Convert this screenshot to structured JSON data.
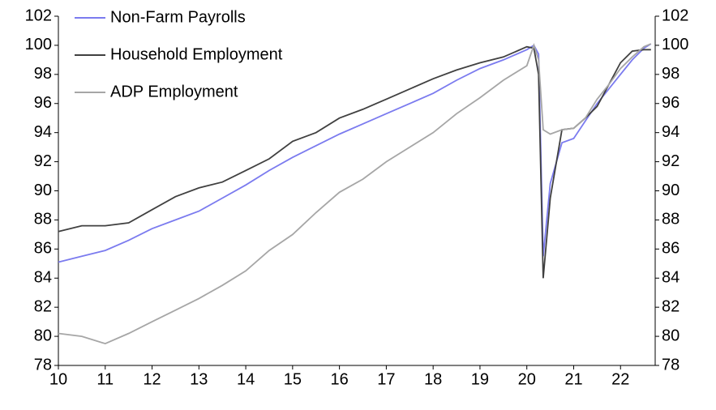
{
  "chart_data": {
    "type": "line",
    "x": [
      10,
      10.5,
      11,
      11.5,
      12,
      12.5,
      13,
      13.5,
      14,
      14.5,
      15,
      15.5,
      16,
      16.5,
      17,
      17.5,
      18,
      18.5,
      19,
      19.5,
      20,
      20.15,
      20.25,
      20.35,
      20.5,
      20.75,
      21,
      21.25,
      21.5,
      21.75,
      22,
      22.25,
      22.5,
      22.65
    ],
    "series": [
      {
        "name": "Non-Farm Payrolls",
        "color": "#7b7bef",
        "values": [
          85.1,
          85.5,
          85.9,
          86.6,
          87.4,
          88.0,
          88.6,
          89.5,
          90.4,
          91.4,
          92.3,
          93.1,
          93.9,
          94.6,
          95.3,
          96.0,
          96.7,
          97.6,
          98.4,
          99.0,
          99.7,
          100.0,
          99.4,
          85.5,
          90.5,
          93.3,
          93.6,
          94.8,
          96.0,
          97.0,
          98.0,
          99.0,
          99.8,
          100.1
        ]
      },
      {
        "name": "Household Employment",
        "color": "#404040",
        "values": [
          87.2,
          87.6,
          87.6,
          87.8,
          88.7,
          89.6,
          90.2,
          90.6,
          91.4,
          92.2,
          93.4,
          94.0,
          95.0,
          95.6,
          96.3,
          97.0,
          97.7,
          98.3,
          98.8,
          99.2,
          99.9,
          99.8,
          98.0,
          84.0,
          89.5,
          94.2,
          94.3,
          95.0,
          95.8,
          97.3,
          98.8,
          99.6,
          99.7,
          99.7
        ]
      },
      {
        "name": "ADP Employment",
        "color": "#a6a6a6",
        "values": [
          80.2,
          80.0,
          79.5,
          80.2,
          81.0,
          81.8,
          82.6,
          83.5,
          84.5,
          85.9,
          87.0,
          88.5,
          89.9,
          90.8,
          92.0,
          93.0,
          94.0,
          95.3,
          96.4,
          97.6,
          98.6,
          100.0,
          99.0,
          94.2,
          93.9,
          94.2,
          94.3,
          95.0,
          96.3,
          97.3,
          98.4,
          99.2,
          99.9,
          100.1
        ]
      }
    ],
    "xlim": [
      10,
      22.74
    ],
    "xticks": [
      10,
      11,
      12,
      13,
      14,
      15,
      16,
      17,
      18,
      19,
      20,
      21,
      22
    ],
    "ylim": [
      78,
      102
    ],
    "yticks": [
      78,
      80,
      82,
      84,
      86,
      88,
      90,
      92,
      94,
      96,
      98,
      100,
      102
    ],
    "y2lim": [
      78,
      102
    ],
    "y2ticks": [
      78,
      80,
      82,
      84,
      86,
      88,
      90,
      92,
      94,
      96,
      98,
      100,
      102
    ],
    "legend": "top-left"
  }
}
